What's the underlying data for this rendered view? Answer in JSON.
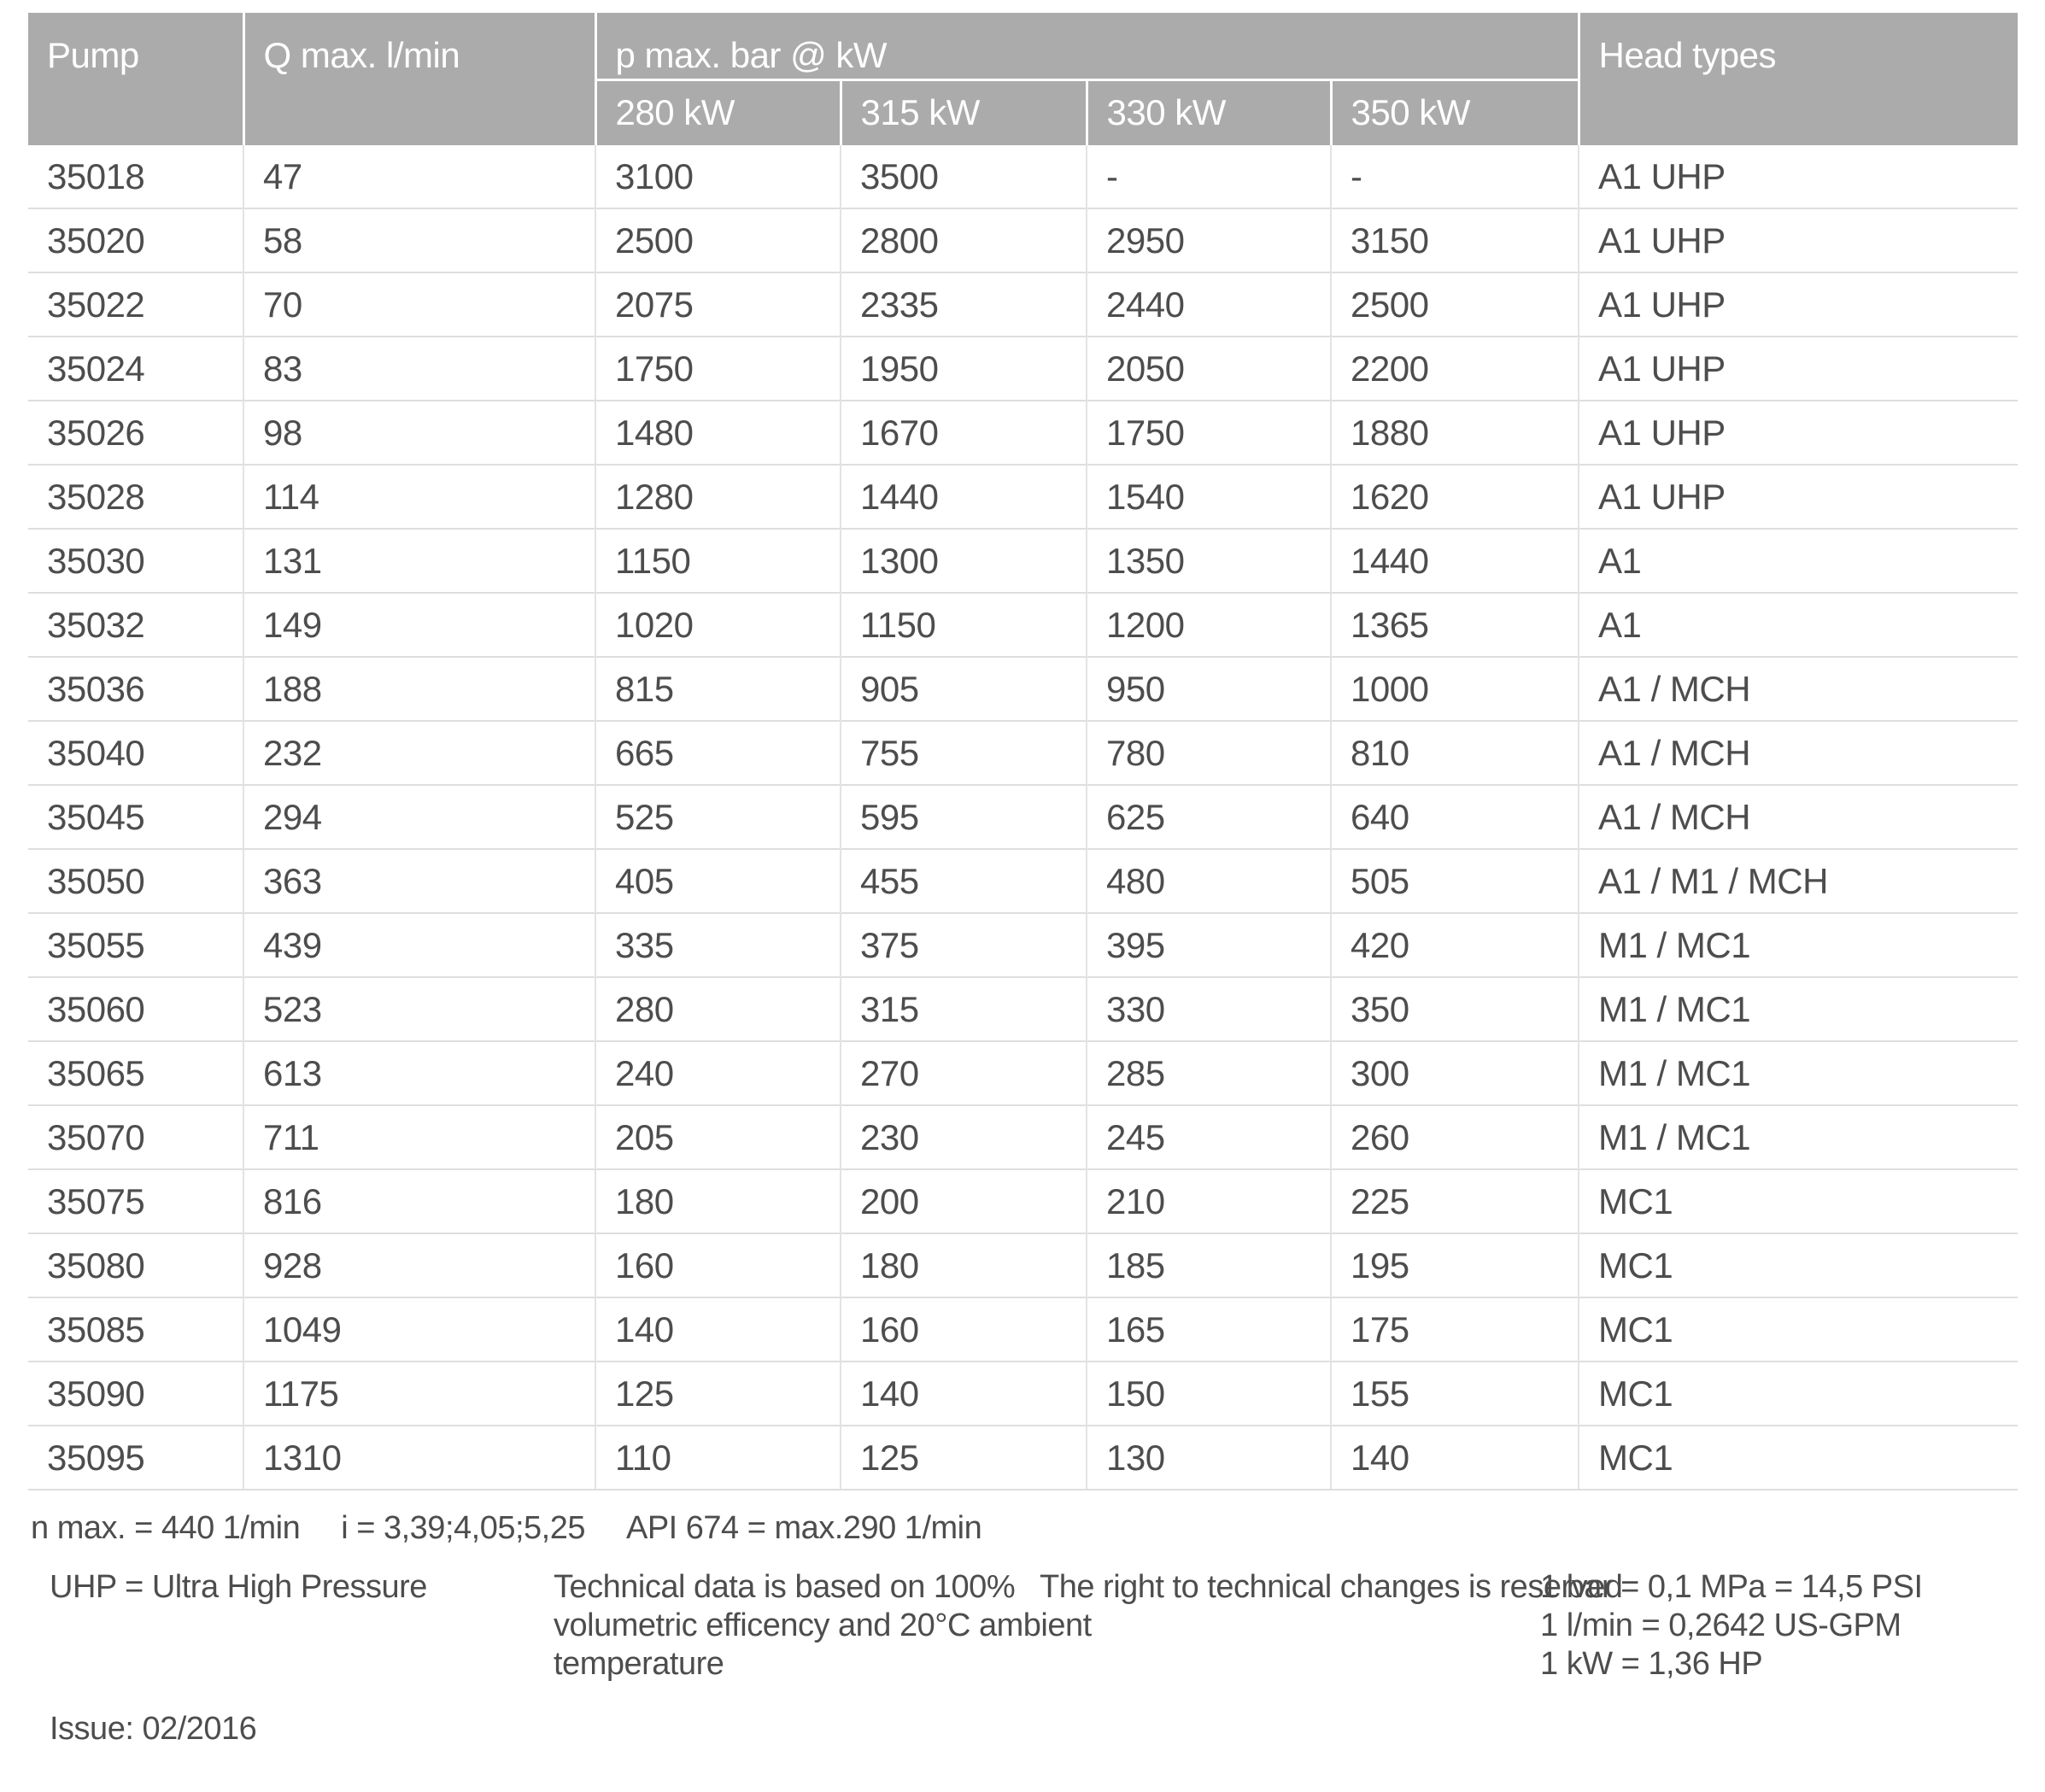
{
  "table": {
    "columns": {
      "pump": "Pump",
      "q_max": "Q max. l/min",
      "p_max_group": "p max. bar @ kW",
      "kw_columns": [
        "280 kW",
        "315 kW",
        "330 kW",
        "350 kW"
      ],
      "head_types": "Head types"
    },
    "rows": [
      {
        "pump": "35018",
        "q_max": "47",
        "p": [
          "3100",
          "3500",
          "-",
          "-"
        ],
        "head": "A1 UHP"
      },
      {
        "pump": "35020",
        "q_max": "58",
        "p": [
          "2500",
          "2800",
          "2950",
          "3150"
        ],
        "head": "A1 UHP"
      },
      {
        "pump": "35022",
        "q_max": "70",
        "p": [
          "2075",
          "2335",
          "2440",
          "2500"
        ],
        "head": "A1 UHP"
      },
      {
        "pump": "35024",
        "q_max": "83",
        "p": [
          "1750",
          "1950",
          "2050",
          "2200"
        ],
        "head": "A1 UHP"
      },
      {
        "pump": "35026",
        "q_max": "98",
        "p": [
          "1480",
          "1670",
          "1750",
          "1880"
        ],
        "head": "A1 UHP"
      },
      {
        "pump": "35028",
        "q_max": "114",
        "p": [
          "1280",
          "1440",
          "1540",
          "1620"
        ],
        "head": "A1 UHP"
      },
      {
        "pump": "35030",
        "q_max": "131",
        "p": [
          "1150",
          "1300",
          "1350",
          "1440"
        ],
        "head": "A1"
      },
      {
        "pump": "35032",
        "q_max": "149",
        "p": [
          "1020",
          "1150",
          "1200",
          "1365"
        ],
        "head": "A1"
      },
      {
        "pump": "35036",
        "q_max": "188",
        "p": [
          "815",
          "905",
          "950",
          "1000"
        ],
        "head": "A1 / MCH"
      },
      {
        "pump": "35040",
        "q_max": "232",
        "p": [
          "665",
          "755",
          "780",
          "810"
        ],
        "head": "A1 / MCH"
      },
      {
        "pump": "35045",
        "q_max": "294",
        "p": [
          "525",
          "595",
          "625",
          "640"
        ],
        "head": "A1 / MCH"
      },
      {
        "pump": "35050",
        "q_max": "363",
        "p": [
          "405",
          "455",
          "480",
          "505"
        ],
        "head": "A1 / M1 / MCH"
      },
      {
        "pump": "35055",
        "q_max": "439",
        "p": [
          "335",
          "375",
          "395",
          "420"
        ],
        "head": "M1 / MC1"
      },
      {
        "pump": "35060",
        "q_max": "523",
        "p": [
          "280",
          "315",
          "330",
          "350"
        ],
        "head": "M1 / MC1"
      },
      {
        "pump": "35065",
        "q_max": "613",
        "p": [
          "240",
          "270",
          "285",
          "300"
        ],
        "head": "M1 / MC1"
      },
      {
        "pump": "35070",
        "q_max": "711",
        "p": [
          "205",
          "230",
          "245",
          "260"
        ],
        "head": "M1 / MC1"
      },
      {
        "pump": "35075",
        "q_max": "816",
        "p": [
          "180",
          "200",
          "210",
          "225"
        ],
        "head": "MC1"
      },
      {
        "pump": "35080",
        "q_max": "928",
        "p": [
          "160",
          "180",
          "185",
          "195"
        ],
        "head": "MC1"
      },
      {
        "pump": "35085",
        "q_max": "1049",
        "p": [
          "140",
          "160",
          "165",
          "175"
        ],
        "head": "MC1"
      },
      {
        "pump": "35090",
        "q_max": "1175",
        "p": [
          "125",
          "140",
          "150",
          "155"
        ],
        "head": "MC1"
      },
      {
        "pump": "35095",
        "q_max": "1310",
        "p": [
          "110",
          "125",
          "130",
          "140"
        ],
        "head": "MC1"
      }
    ]
  },
  "footnotes": {
    "n_max": "n max. = 440 1/min",
    "ratio": "i = 3,39;4,05;5,25",
    "api": "API 674 = max.290 1/min",
    "uhp": "UHP = Ultra High Pressure",
    "technical": "Technical data is based on 100%\nvolumetric efficency and 20°C ambient\ntemperature",
    "rights": "The right to technical changes is reserved",
    "conversions": "1 bar = 0,1 MPa = 14,5 PSI\n1 l/min = 0,2642 US-GPM\n1 kW = 1,36 HP",
    "issue": "Issue: 02/2016"
  },
  "colors": {
    "header_bg": "#ababab",
    "header_text": "#ffffff",
    "body_text": "#4d4d4d",
    "row_border": "#dedede"
  }
}
